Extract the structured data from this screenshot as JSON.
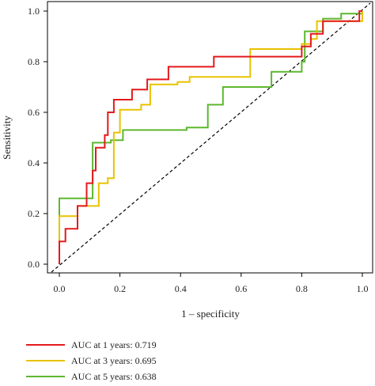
{
  "chart_data": {
    "type": "line",
    "xlabel": "1 – specificity",
    "ylabel": "Sensitivity",
    "xlim": [
      0,
      1
    ],
    "ylim": [
      0,
      1
    ],
    "x_ticks": [
      "0.0",
      "0.2",
      "0.4",
      "0.6",
      "0.8",
      "1.0"
    ],
    "y_ticks": [
      "0.0",
      "0.2",
      "0.4",
      "0.6",
      "0.8",
      "1.0"
    ],
    "legend_position": "bottom-left",
    "reference_line": {
      "style": "dashed",
      "color": "#000000",
      "from": [
        0,
        0
      ],
      "to": [
        1,
        1
      ]
    },
    "series": [
      {
        "name": "AUC at 1 years: 0.719",
        "color": "#e31a1c",
        "x": [
          0,
          0,
          0.02,
          0.02,
          0.06,
          0.06,
          0.09,
          0.09,
          0.11,
          0.11,
          0.12,
          0.12,
          0.15,
          0.15,
          0.16,
          0.16,
          0.18,
          0.18,
          0.24,
          0.24,
          0.29,
          0.29,
          0.36,
          0.36,
          0.51,
          0.51,
          0.8,
          0.8,
          0.83,
          0.83,
          0.87,
          0.87,
          0.99,
          0.99,
          1.0
        ],
        "y": [
          0,
          0.09,
          0.09,
          0.14,
          0.14,
          0.23,
          0.23,
          0.32,
          0.32,
          0.37,
          0.37,
          0.46,
          0.46,
          0.51,
          0.51,
          0.6,
          0.6,
          0.65,
          0.65,
          0.69,
          0.69,
          0.73,
          0.73,
          0.78,
          0.78,
          0.82,
          0.82,
          0.86,
          0.86,
          0.91,
          0.91,
          0.96,
          0.96,
          1.0,
          1.0
        ]
      },
      {
        "name": "AUC at 3 years: 0.695",
        "color": "#e8c200",
        "x": [
          0,
          0,
          0.06,
          0.06,
          0.13,
          0.13,
          0.16,
          0.16,
          0.18,
          0.18,
          0.2,
          0.2,
          0.27,
          0.27,
          0.3,
          0.3,
          0.39,
          0.39,
          0.43,
          0.43,
          0.63,
          0.63,
          0.8,
          0.8,
          0.83,
          0.83,
          0.85,
          0.85,
          1.0,
          1.0
        ],
        "y": [
          0,
          0.19,
          0.19,
          0.23,
          0.23,
          0.32,
          0.32,
          0.34,
          0.34,
          0.52,
          0.52,
          0.61,
          0.61,
          0.63,
          0.63,
          0.71,
          0.71,
          0.72,
          0.72,
          0.74,
          0.74,
          0.85,
          0.85,
          0.87,
          0.87,
          0.89,
          0.89,
          0.96,
          0.96,
          1.0
        ]
      },
      {
        "name": "AUC at 5 years: 0.638",
        "color": "#5cb82e",
        "x": [
          0,
          0,
          0.11,
          0.11,
          0.17,
          0.17,
          0.21,
          0.21,
          0.42,
          0.42,
          0.49,
          0.49,
          0.54,
          0.54,
          0.7,
          0.7,
          0.8,
          0.8,
          0.81,
          0.81,
          0.87,
          0.87,
          0.93,
          0.93,
          1.0
        ],
        "y": [
          0,
          0.26,
          0.26,
          0.48,
          0.48,
          0.49,
          0.49,
          0.53,
          0.53,
          0.54,
          0.54,
          0.63,
          0.63,
          0.7,
          0.7,
          0.76,
          0.76,
          0.8,
          0.8,
          0.92,
          0.92,
          0.97,
          0.97,
          0.99,
          0.99
        ]
      }
    ]
  }
}
